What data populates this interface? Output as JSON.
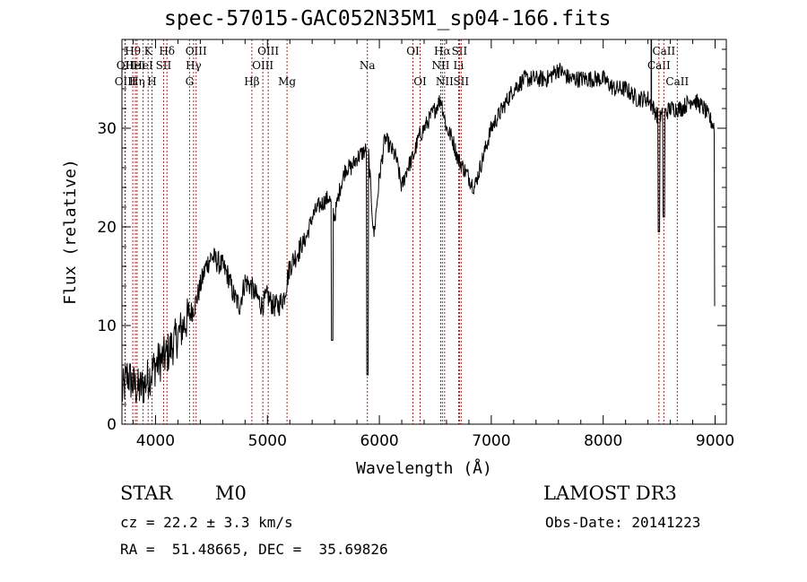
{
  "chart_data": {
    "type": "line",
    "title": "spec-57015-GAC052N35M1_sp04-166.fits",
    "xlabel": "Wavelength (Å)",
    "ylabel": "Flux (relative)",
    "xlim": [
      3700,
      9100
    ],
    "ylim": [
      0,
      39
    ],
    "x_ticks": [
      4000,
      5000,
      6000,
      7000,
      8000,
      9000
    ],
    "y_ticks": [
      0,
      10,
      20,
      30
    ],
    "grid": false,
    "series": [
      {
        "x": [
          3700,
          3750,
          3800,
          3850,
          3900,
          3950,
          4000,
          4050,
          4100,
          4150,
          4200,
          4250,
          4300,
          4350,
          4400,
          4450,
          4500,
          4550,
          4600,
          4650,
          4700,
          4750,
          4800,
          4850,
          4900,
          4950,
          5000,
          5050,
          5100,
          5150,
          5200,
          5250,
          5300,
          5350,
          5400,
          5450,
          5500,
          5550,
          5600,
          5650,
          5700,
          5750,
          5800,
          5850,
          5900,
          5950,
          6000,
          6050,
          6100,
          6150,
          6200,
          6250,
          6300,
          6350,
          6400,
          6450,
          6500,
          6550,
          6600,
          6650,
          6700,
          6750,
          6800,
          6850,
          6900,
          6950,
          7000,
          7050,
          7100,
          7200,
          7300,
          7400,
          7500,
          7600,
          7700,
          7800,
          7900,
          8000,
          8100,
          8200,
          8300,
          8400,
          8500,
          8600,
          8700,
          8800,
          8900,
          9000
        ],
        "y": [
          3,
          5,
          4,
          3.5,
          4,
          5,
          6,
          6.5,
          7,
          8,
          9,
          10,
          11,
          12,
          14,
          16,
          17,
          16.5,
          16,
          15,
          13,
          12,
          14.5,
          14,
          13,
          12,
          13,
          12,
          12,
          13,
          16,
          17,
          18,
          19,
          21,
          22,
          22.5,
          23,
          21,
          24,
          26,
          26,
          27,
          27.5,
          28,
          19,
          25,
          29,
          28,
          27,
          24,
          26,
          27,
          29,
          30,
          31,
          32,
          33,
          30,
          29,
          27,
          26,
          25,
          24,
          26,
          28,
          30,
          31,
          32,
          34,
          35,
          35,
          35,
          36,
          35,
          35,
          35,
          35,
          34,
          34,
          33,
          33,
          31,
          32,
          32,
          33,
          32,
          30
        ],
        "name": ""
      }
    ],
    "dips": [
      {
        "x": 5577,
        "y": 8.5
      },
      {
        "x": 5893,
        "y": 5
      },
      {
        "x": 8498,
        "y": 19.5
      },
      {
        "x": 8542,
        "y": 21
      },
      {
        "x": 9000,
        "y": 12
      }
    ],
    "top_spike": {
      "x": 8430
    },
    "reference_lines": [
      {
        "x": 3727,
        "label": "OII",
        "row": 2
      },
      {
        "x": 3730,
        "label": "OIII",
        "row": 3
      },
      {
        "x": 3797,
        "label": "Hθ",
        "row": 1
      },
      {
        "x": 3820,
        "label": "HeI",
        "row": 2
      },
      {
        "x": 3835,
        "label": "Hη",
        "row": 3
      },
      {
        "x": 3889,
        "label": "HeI",
        "row": 2
      },
      {
        "x": 3934,
        "label": "K",
        "row": 1
      },
      {
        "x": 3968,
        "label": "H",
        "row": 3
      },
      {
        "x": 4072,
        "label": "SII",
        "row": 2
      },
      {
        "x": 4102,
        "label": "Hδ",
        "row": 1
      },
      {
        "x": 4304,
        "label": "G",
        "row": 3
      },
      {
        "x": 4340,
        "label": "Hγ",
        "row": 2
      },
      {
        "x": 4363,
        "label": "OIII",
        "row": 1
      },
      {
        "x": 4861,
        "label": "Hβ",
        "row": 3
      },
      {
        "x": 4959,
        "label": "OIII",
        "row": 2
      },
      {
        "x": 5007,
        "label": "OIII",
        "row": 1
      },
      {
        "x": 5175,
        "label": "Mg",
        "row": 3
      },
      {
        "x": 5893,
        "label": "Na",
        "row": 2
      },
      {
        "x": 6300,
        "label": "OI",
        "row": 1
      },
      {
        "x": 6364,
        "label": "OI",
        "row": 3
      },
      {
        "x": 6548,
        "label": "NII",
        "row": 2
      },
      {
        "x": 6563,
        "label": "Hα",
        "row": 1
      },
      {
        "x": 6583,
        "label": "NII",
        "row": 3
      },
      {
        "x": 6708,
        "label": "Li",
        "row": 2
      },
      {
        "x": 6716,
        "label": "SII",
        "row": 1
      },
      {
        "x": 6731,
        "label": "SII",
        "row": 3
      },
      {
        "x": 8498,
        "label": "CaII",
        "row": 2
      },
      {
        "x": 8542,
        "label": "CaII",
        "row": 1
      },
      {
        "x": 8662,
        "label": "CaII",
        "row": 3
      }
    ],
    "line_color": "#000000",
    "reference_line_color": "#a52a2a"
  },
  "info": {
    "class": "STAR",
    "subclass": "M0",
    "survey": "LAMOST DR3",
    "cz": "cz = 22.2 ± 3.3 km/s",
    "obs_date": "Obs-Date: 20141223",
    "coords": "RA =  51.48665, DEC =  35.69826"
  }
}
